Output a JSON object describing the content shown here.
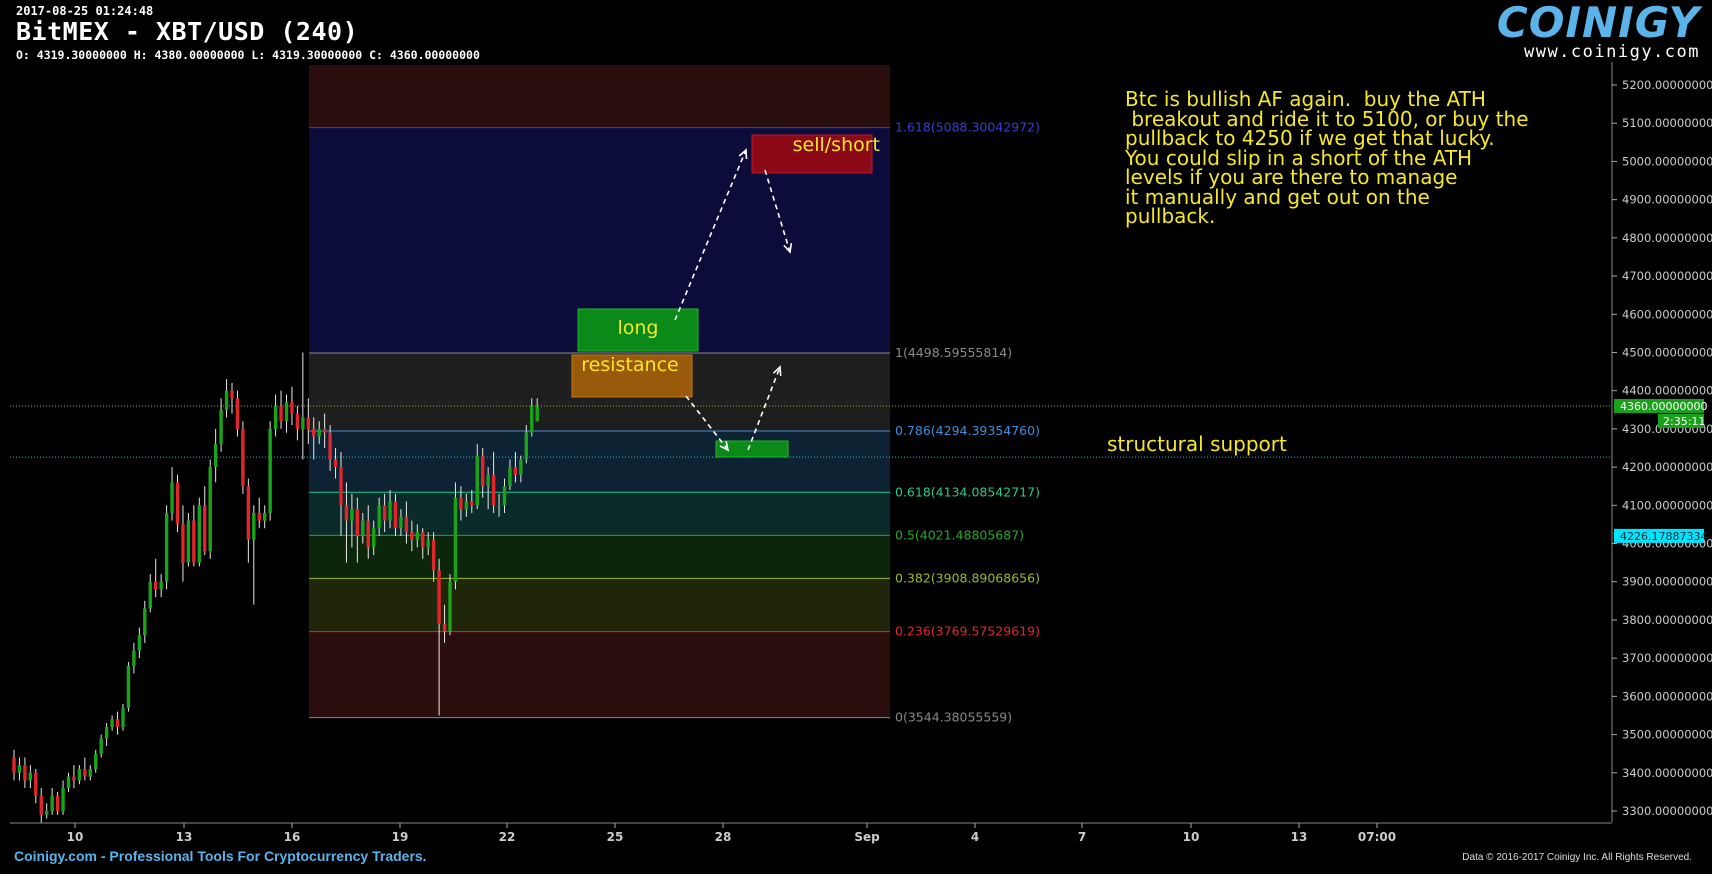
{
  "header": {
    "timestamp": "2017-08-25 01:24:48",
    "title": "BitMEX - XBT/USD (240)",
    "ohlc": "O: 4319.30000000 H: 4380.00000000 L: 4319.30000000 C: 4360.00000000"
  },
  "logo": {
    "brand": "COINIGY",
    "url": "www.coinigy.com"
  },
  "annotation_text": "Btc is bullish AF again.  buy the ATH\n breakout and ride it to 5100, or buy the\npullback to 4250 if we get that lucky.\nYou could slip in a short of the ATH\nlevels if you are there to manage\nit manually and get out on the\npullback.",
  "support_text": "structural support",
  "boxes": {
    "long": "long",
    "resistance": "resistance",
    "sell_short": "sell/short"
  },
  "footer": {
    "left": "Coinigy.com - Professional Tools For Cryptocurrency Traders.",
    "right": "Data © 2016-2017 Coinigy Inc. All Rights Reserved."
  },
  "colors": {
    "bull": "#1aa31a",
    "bear": "#e0262b",
    "text_yellow": "#f5e72a",
    "accent": "#5ab4ea",
    "axis": "#cccccc",
    "price_tag": "#1aa31a",
    "cyan_tag": "#00e5ff"
  },
  "chart_data": {
    "type": "candlestick",
    "y_ticks": [
      "3300.00000000",
      "3400.00000000",
      "3500.00000000",
      "3600.00000000",
      "3700.00000000",
      "3800.00000000",
      "3900.00000000",
      "4000.00000000",
      "4100.00000000",
      "4200.00000000",
      "4300.00000000",
      "4400.00000000",
      "4500.00000000",
      "4600.00000000",
      "4700.00000000",
      "4800.00000000",
      "4900.00000000",
      "5000.00000000",
      "5100.00000000",
      "5200.00000000"
    ],
    "x_ticks": [
      "10",
      "13",
      "16",
      "19",
      "22",
      "25",
      "28",
      "Sep",
      "4",
      "7",
      "10",
      "13",
      "07:00"
    ],
    "ylim": [
      3260,
      5240
    ],
    "current_price": {
      "value": 4360,
      "label": "4360.00000000",
      "timer": "2:35:11"
    },
    "cyan_line": {
      "value": 4226.17887334,
      "label": "4226.17887334"
    },
    "fib_levels": [
      {
        "ratio": "1.618",
        "value": 5088.30042972,
        "label": "1.618(5088.30042972)",
        "color": "#3b3bd0"
      },
      {
        "ratio": "1",
        "value": 4498.59555814,
        "label": "1(4498.59555814)",
        "color": "#8a8a8a"
      },
      {
        "ratio": "0.786",
        "value": 4294.3935476,
        "label": "0.786(4294.39354760)",
        "color": "#3f8fd8"
      },
      {
        "ratio": "0.618",
        "value": 4134.08542717,
        "label": "0.618(4134.08542717)",
        "color": "#22cc88"
      },
      {
        "ratio": "0.5",
        "value": 4021.48805687,
        "label": "0.5(4021.48805687)",
        "color": "#22aa22"
      },
      {
        "ratio": "0.382",
        "value": 3908.89068656,
        "label": "0.382(3908.89068656)",
        "color": "#99bb22"
      },
      {
        "ratio": "0.236",
        "value": 3769.57529619,
        "label": "0.236(3769.57529619)",
        "color": "#dd2a2a"
      },
      {
        "ratio": "0",
        "value": 3544.38055559,
        "label": "0(3544.38055559)",
        "color": "#888888"
      }
    ],
    "candles": [
      [
        3440,
        3460,
        3400,
        3380
      ],
      [
        3400,
        3440,
        3420,
        3380
      ],
      [
        3420,
        3440,
        3380,
        3360
      ],
      [
        3380,
        3420,
        3400,
        3360
      ],
      [
        3400,
        3410,
        3340,
        3320
      ],
      [
        3340,
        3360,
        3290,
        3270
      ],
      [
        3290,
        3320,
        3300,
        3280
      ],
      [
        3300,
        3360,
        3340,
        3290
      ],
      [
        3340,
        3350,
        3300,
        3290
      ],
      [
        3300,
        3380,
        3360,
        3290
      ],
      [
        3360,
        3400,
        3390,
        3350
      ],
      [
        3390,
        3420,
        3380,
        3360
      ],
      [
        3380,
        3420,
        3410,
        3370
      ],
      [
        3410,
        3440,
        3390,
        3380
      ],
      [
        3390,
        3420,
        3410,
        3380
      ],
      [
        3410,
        3460,
        3450,
        3400
      ],
      [
        3450,
        3500,
        3490,
        3440
      ],
      [
        3490,
        3530,
        3520,
        3470
      ],
      [
        3520,
        3550,
        3540,
        3510
      ],
      [
        3540,
        3560,
        3520,
        3500
      ],
      [
        3520,
        3580,
        3570,
        3510
      ],
      [
        3570,
        3690,
        3680,
        3560
      ],
      [
        3680,
        3740,
        3720,
        3660
      ],
      [
        3720,
        3780,
        3760,
        3700
      ],
      [
        3760,
        3850,
        3830,
        3740
      ],
      [
        3830,
        3920,
        3900,
        3820
      ],
      [
        3900,
        3960,
        3880,
        3860
      ],
      [
        3880,
        3920,
        3900,
        3860
      ],
      [
        3900,
        4100,
        4080,
        3880
      ],
      [
        4080,
        4200,
        4160,
        4060
      ],
      [
        4160,
        4180,
        4050,
        4030
      ],
      [
        4050,
        4100,
        3950,
        3900
      ],
      [
        3950,
        4080,
        4060,
        3940
      ],
      [
        4060,
        4100,
        3950,
        3940
      ],
      [
        3950,
        4120,
        4100,
        3940
      ],
      [
        4100,
        4150,
        3980,
        3970
      ],
      [
        3980,
        4220,
        4200,
        3960
      ],
      [
        4200,
        4300,
        4260,
        4160
      ],
      [
        4260,
        4380,
        4350,
        4240
      ],
      [
        4350,
        4430,
        4400,
        4330
      ],
      [
        4400,
        4420,
        4380,
        4340
      ],
      [
        4380,
        4400,
        4300,
        4280
      ],
      [
        4300,
        4320,
        4150,
        4130
      ],
      [
        4150,
        4170,
        4010,
        3950
      ],
      [
        4010,
        4100,
        4080,
        3840
      ],
      [
        4080,
        4120,
        4060,
        4040
      ],
      [
        4060,
        4100,
        4080,
        4040
      ],
      [
        4080,
        4320,
        4300,
        4060
      ],
      [
        4300,
        4390,
        4360,
        4280
      ],
      [
        4360,
        4400,
        4320,
        4300
      ],
      [
        4320,
        4390,
        4370,
        4290
      ],
      [
        4370,
        4410,
        4340,
        4310
      ],
      [
        4340,
        4360,
        4300,
        4270
      ],
      [
        4300,
        4500,
        4330,
        4220
      ],
      [
        4330,
        4380,
        4300,
        4260
      ],
      [
        4300,
        4330,
        4280,
        4220
      ],
      [
        4280,
        4320,
        4300,
        4260
      ],
      [
        4300,
        4340,
        4290,
        4250
      ],
      [
        4290,
        4310,
        4220,
        4190
      ],
      [
        4220,
        4250,
        4200,
        4170
      ],
      [
        4200,
        4240,
        4100,
        4020
      ],
      [
        4100,
        4160,
        4060,
        3950
      ],
      [
        4060,
        4130,
        4090,
        3990
      ],
      [
        4090,
        4120,
        4020,
        3950
      ],
      [
        4020,
        4080,
        4060,
        4000
      ],
      [
        4060,
        4100,
        3990,
        3960
      ],
      [
        3990,
        4060,
        4040,
        3970
      ],
      [
        4040,
        4120,
        4100,
        4020
      ],
      [
        4100,
        4130,
        4060,
        4030
      ],
      [
        4060,
        4140,
        4110,
        4040
      ],
      [
        4110,
        4130,
        4040,
        4020
      ],
      [
        4040,
        4090,
        4070,
        4020
      ],
      [
        4070,
        4110,
        4030,
        4000
      ],
      [
        4030,
        4060,
        4010,
        3980
      ],
      [
        4010,
        4050,
        4030,
        3990
      ],
      [
        4030,
        4040,
        3990,
        3960
      ],
      [
        3990,
        4030,
        4010,
        3970
      ],
      [
        4010,
        4030,
        3930,
        3900
      ],
      [
        3930,
        3960,
        3790,
        3550
      ],
      [
        3790,
        3840,
        3770,
        3740
      ],
      [
        3770,
        3920,
        3900,
        3760
      ],
      [
        3900,
        4160,
        4120,
        3880
      ],
      [
        4120,
        4150,
        4090,
        4060
      ],
      [
        4090,
        4130,
        4110,
        4070
      ],
      [
        4110,
        4140,
        4100,
        4080
      ],
      [
        4100,
        4260,
        4230,
        4090
      ],
      [
        4230,
        4250,
        4150,
        4120
      ],
      [
        4150,
        4200,
        4180,
        4090
      ],
      [
        4180,
        4240,
        4100,
        4080
      ],
      [
        4100,
        4130,
        4100,
        4070
      ],
      [
        4100,
        4170,
        4150,
        4080
      ],
      [
        4150,
        4220,
        4200,
        4140
      ],
      [
        4200,
        4240,
        4180,
        4160
      ],
      [
        4180,
        4230,
        4220,
        4160
      ],
      [
        4220,
        4310,
        4290,
        4210
      ],
      [
        4290,
        4380,
        4360,
        4280
      ],
      [
        4319.3,
        4380,
        4360,
        4319.3
      ]
    ]
  }
}
